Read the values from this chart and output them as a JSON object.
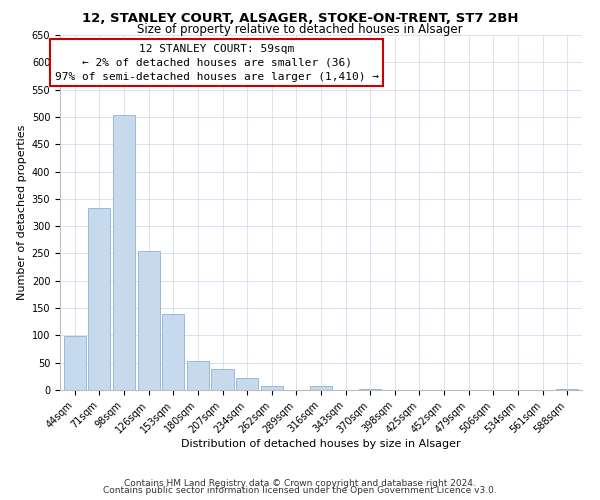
{
  "title": "12, STANLEY COURT, ALSAGER, STOKE-ON-TRENT, ST7 2BH",
  "subtitle": "Size of property relative to detached houses in Alsager",
  "xlabel": "Distribution of detached houses by size in Alsager",
  "ylabel": "Number of detached properties",
  "bar_labels": [
    "44sqm",
    "71sqm",
    "98sqm",
    "126sqm",
    "153sqm",
    "180sqm",
    "207sqm",
    "234sqm",
    "262sqm",
    "289sqm",
    "316sqm",
    "343sqm",
    "370sqm",
    "398sqm",
    "425sqm",
    "452sqm",
    "479sqm",
    "506sqm",
    "534sqm",
    "561sqm",
    "588sqm"
  ],
  "bar_values": [
    98,
    333,
    503,
    255,
    140,
    53,
    38,
    22,
    7,
    0,
    8,
    0,
    1,
    0,
    0,
    0,
    0,
    0,
    0,
    0,
    2
  ],
  "bar_color": "#c6d9ed",
  "bar_edge_color": "#8ab4d4",
  "ylim": [
    0,
    650
  ],
  "yticks": [
    0,
    50,
    100,
    150,
    200,
    250,
    300,
    350,
    400,
    450,
    500,
    550,
    600,
    650
  ],
  "annotation_line1": "12 STANLEY COURT: 59sqm",
  "annotation_line2": "← 2% of detached houses are smaller (36)",
  "annotation_line3": "97% of semi-detached houses are larger (1,410) →",
  "annotation_box_color": "#ffffff",
  "annotation_box_edge_color": "#cc0000",
  "footnote1": "Contains HM Land Registry data © Crown copyright and database right 2024.",
  "footnote2": "Contains public sector information licensed under the Open Government Licence v3.0.",
  "bg_color": "#ffffff",
  "grid_color": "#ccd8e8",
  "title_fontsize": 9.5,
  "subtitle_fontsize": 8.5,
  "axis_label_fontsize": 8,
  "tick_fontsize": 7,
  "annotation_fontsize": 8,
  "footnote_fontsize": 6.5
}
